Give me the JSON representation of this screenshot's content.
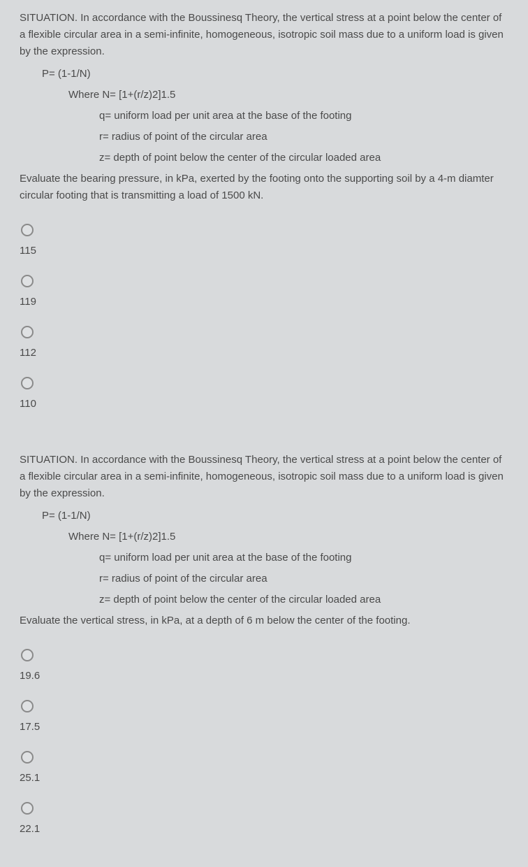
{
  "background_color": "#d8dadc",
  "text_color": "#4a4a4a",
  "font_size": 15,
  "questions": [
    {
      "situation_prefix": "SITUATION. ",
      "situation": "In accordance with the Boussinesq Theory, the vertical stress at a point below the center of a flexible circular area in a semi-infinite, homogeneous, isotropic soil mass due to a uniform load is given by the expression.",
      "formula_p": "P= (1-1/N)",
      "formula_n": "Where N= [1+(r/z)2]1.5",
      "def_q": "q= uniform load per unit area at the base of the footing",
      "def_r": "r= radius of point of the circular area",
      "def_z": "z= depth of point below the center of the circular loaded area",
      "prompt": "Evaluate the bearing pressure, in kPa, exerted by the footing onto the supporting soil by a 4-m diamter circular footing that is transmitting a load of 1500 kN.",
      "options": [
        "115",
        "119",
        "112",
        "110"
      ]
    },
    {
      "situation_prefix": "SITUATION. ",
      "situation": "In accordance with the Boussinesq Theory, the vertical stress at a point below the center of a flexible circular area in a semi-infinite, homogeneous, isotropic soil mass due to a uniform load is given by the expression.",
      "formula_p": "P= (1-1/N)",
      "formula_n": "Where N= [1+(r/z)2]1.5",
      "def_q": "q= uniform load per unit area at the base of the footing",
      "def_r": "r= radius of point of the circular area",
      "def_z": "z= depth of point below the center of the circular loaded area",
      "prompt": "Evaluate the vertical stress, in kPa, at a depth of 6 m below the center of the footing.",
      "options": [
        "19.6",
        "17.5",
        "25.1",
        "22.1"
      ]
    }
  ]
}
